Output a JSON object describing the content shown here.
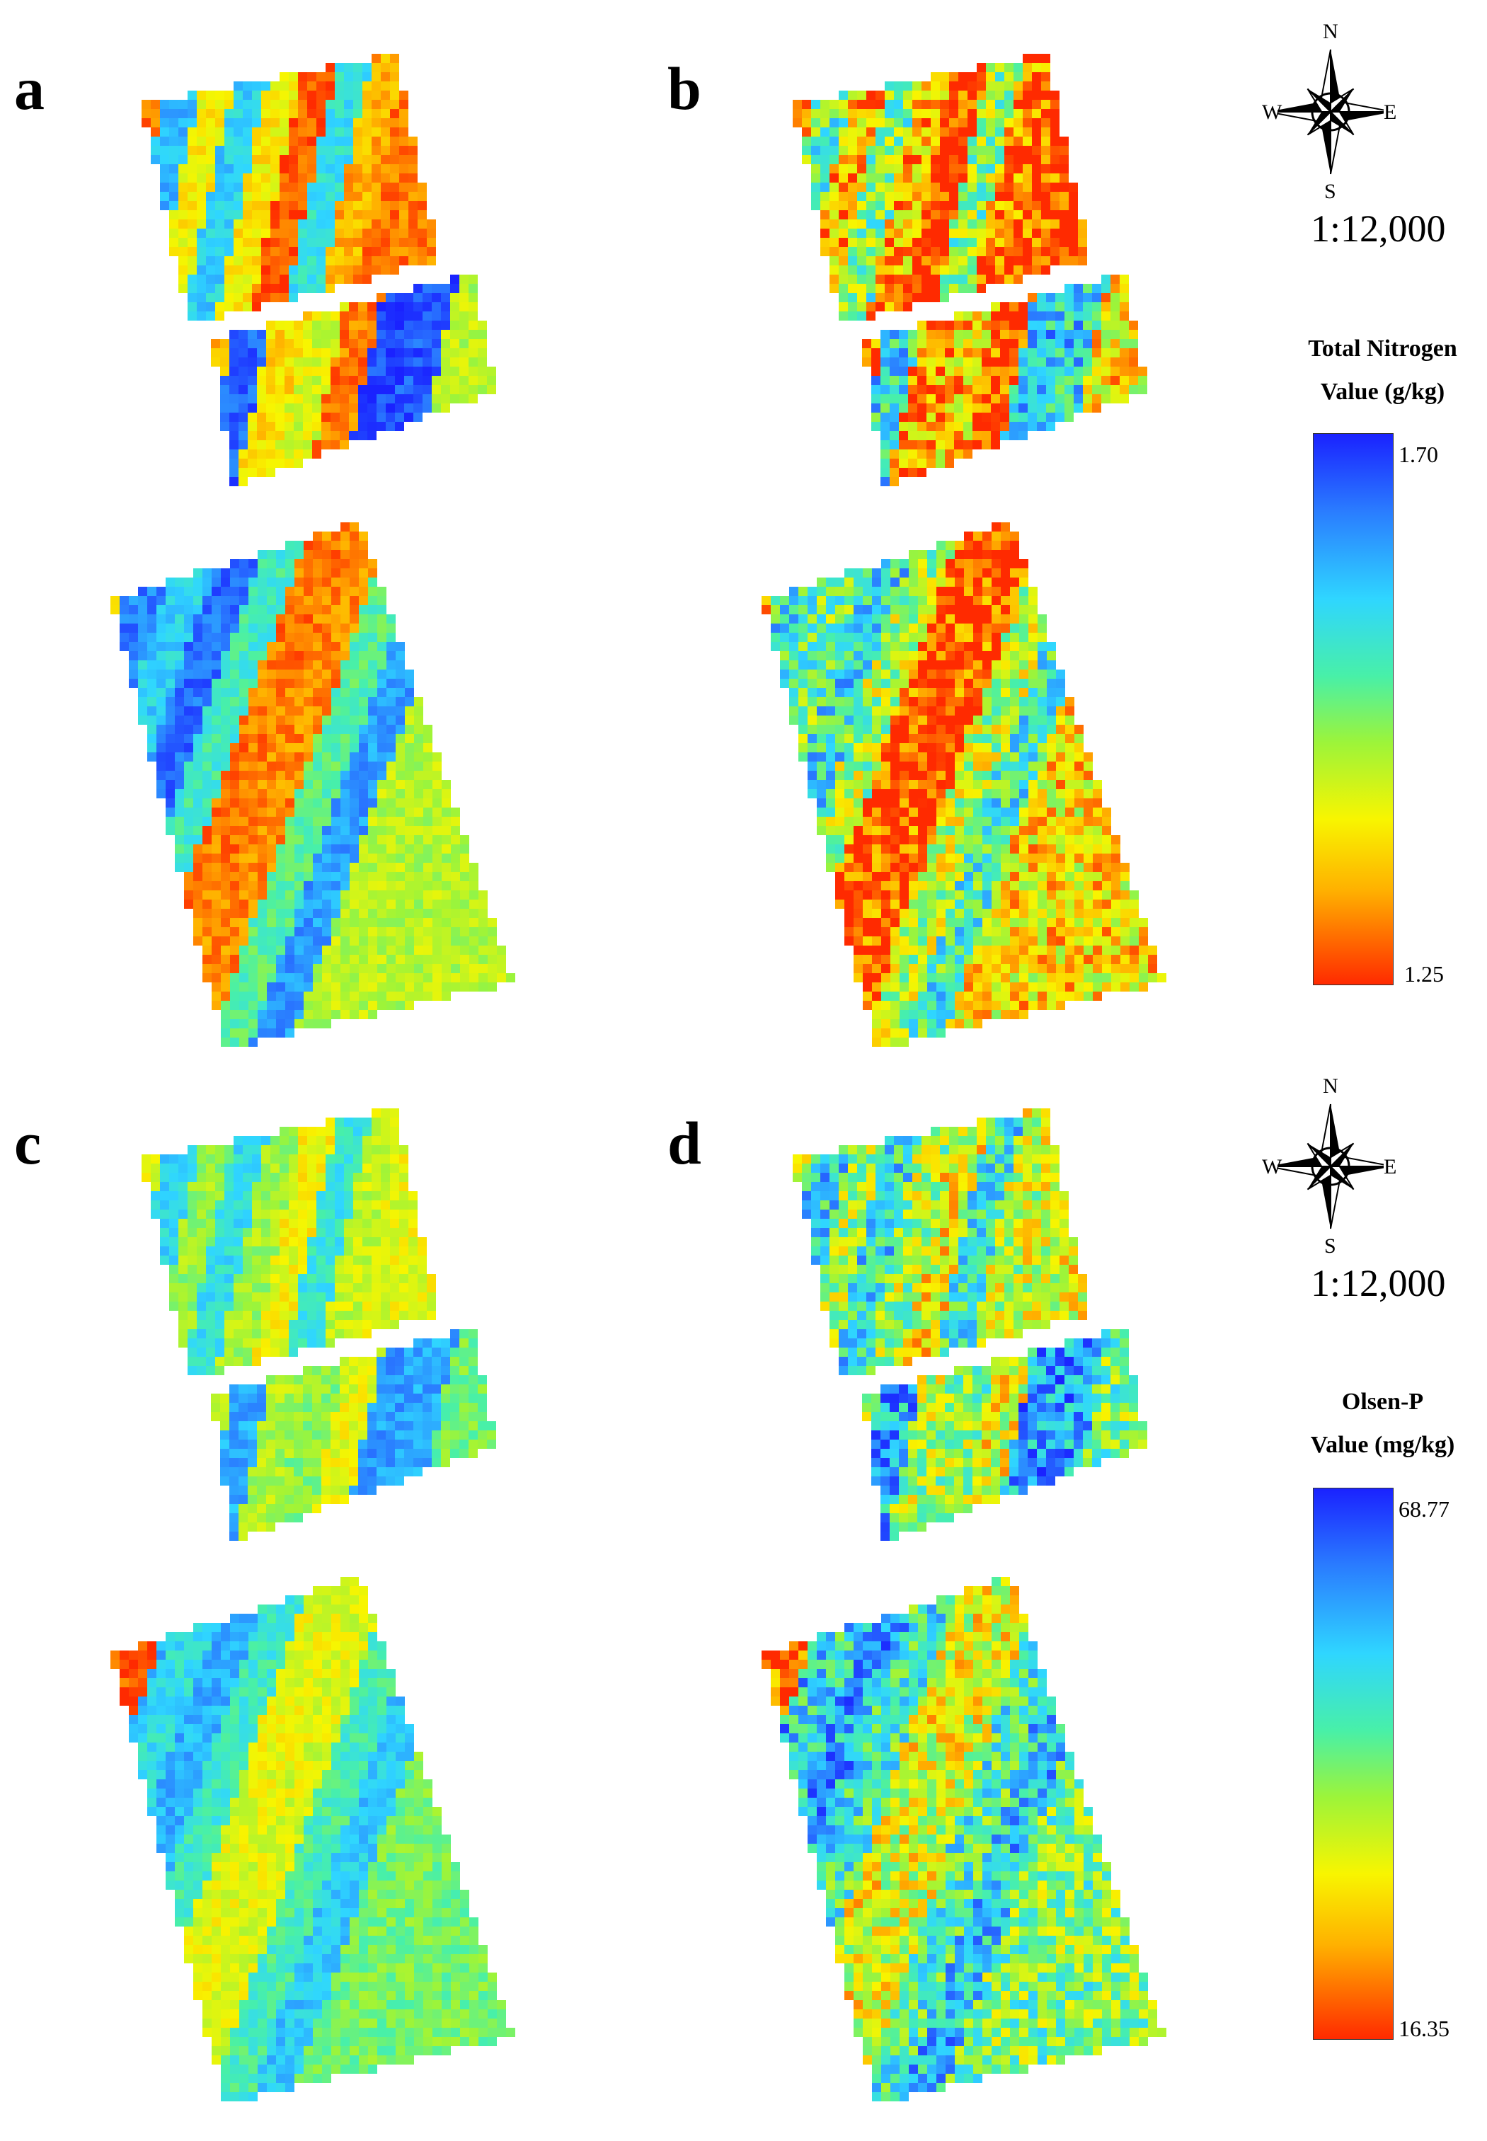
{
  "panels": [
    {
      "label": "a",
      "variable": "tn",
      "mode": "smooth"
    },
    {
      "label": "b",
      "variable": "tn",
      "mode": "noisy"
    },
    {
      "label": "c",
      "variable": "op",
      "mode": "smooth"
    },
    {
      "label": "d",
      "variable": "op",
      "mode": "noisy"
    }
  ],
  "compass": {
    "n": "N",
    "s": "S",
    "e": "E",
    "w": "W"
  },
  "legends": {
    "tn": {
      "scale": "1:12,000",
      "title_line1": "Total Nitrogen",
      "title_line2": "Value  (g/kg)",
      "max": "1.70",
      "min": "1.25"
    },
    "op": {
      "scale": "1:12,000",
      "title_line1": "Olsen-P",
      "title_line2": "Value  (mg/kg)",
      "max": "68.77",
      "min": "16.35"
    }
  },
  "colors": {
    "high": "#1a22ff",
    "mid": "#9cf43a",
    "low": "#ff2a00"
  }
}
